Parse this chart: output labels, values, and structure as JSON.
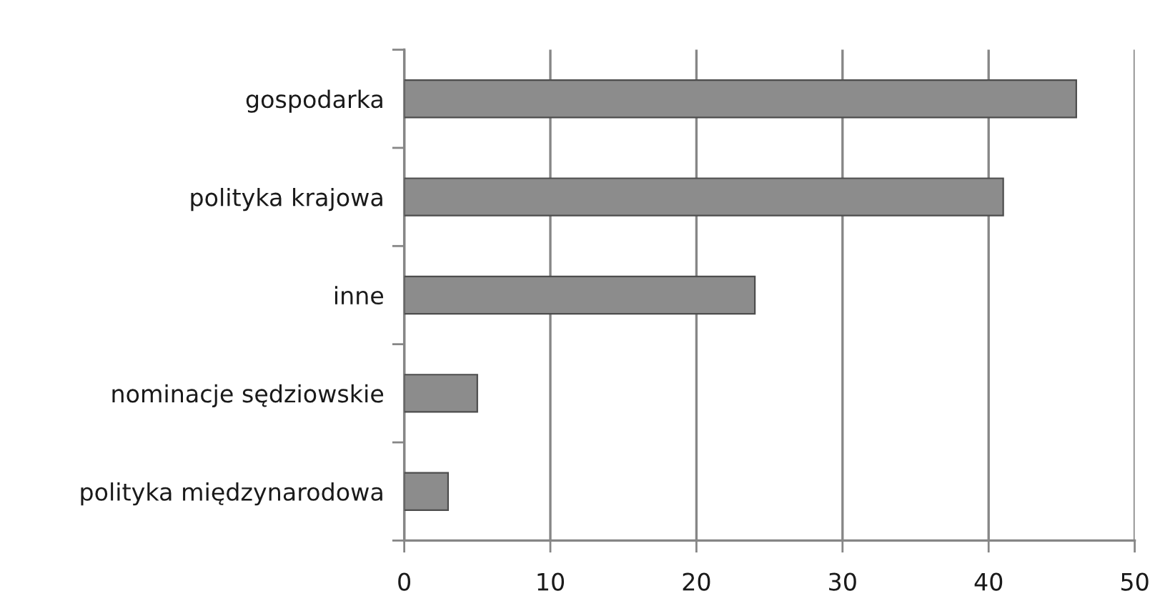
{
  "chart_data": {
    "type": "bar",
    "orientation": "horizontal",
    "categories": [
      "gospodarka",
      "polityka krajowa",
      "inne",
      "nominacje sędziowskie",
      "polityka międzynarodowa"
    ],
    "values": [
      46,
      41,
      24,
      5,
      3
    ],
    "color": "#8c8c8c",
    "xlim": [
      0,
      50
    ],
    "xticks": [
      0,
      10,
      20,
      30,
      40,
      50
    ],
    "grid": "x"
  }
}
